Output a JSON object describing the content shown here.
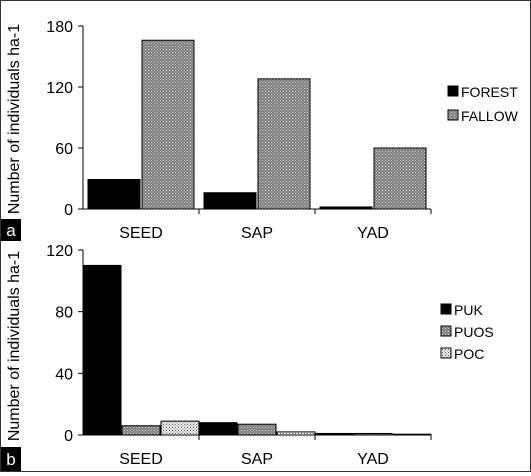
{
  "colors": {
    "black": "#000000",
    "gray": "#8c8c8c",
    "light": "#e8e8e8"
  },
  "chart_data": [
    {
      "type": "bar",
      "panel_label": "a",
      "categories": [
        "SEED",
        "SAP",
        "YAD"
      ],
      "ylabel": "Number of individuals ha-1",
      "xlabel": "",
      "ylim": [
        0,
        180
      ],
      "yticks": [
        "0",
        "60",
        "120",
        "180"
      ],
      "grid": false,
      "legend_position": "right",
      "series": [
        {
          "name": "FOREST",
          "values": [
            29,
            16,
            2
          ],
          "pattern": "solid-black"
        },
        {
          "name": "FALLOW",
          "values": [
            166,
            128,
            60
          ],
          "pattern": "dotted-gray"
        }
      ]
    },
    {
      "type": "bar",
      "panel_label": "b",
      "categories": [
        "SEED",
        "SAP",
        "YAD"
      ],
      "ylabel": "Number of individuals ha-1",
      "xlabel": "",
      "ylim": [
        0,
        120
      ],
      "yticks": [
        "0",
        "40",
        "80",
        "120"
      ],
      "grid": false,
      "legend_position": "right",
      "series": [
        {
          "name": "PUK",
          "values": [
            110,
            8,
            1
          ],
          "pattern": "solid-black"
        },
        {
          "name": "PUOS",
          "values": [
            6,
            7,
            1
          ],
          "pattern": "dotted-gray"
        },
        {
          "name": "POC",
          "values": [
            9,
            2,
            0
          ],
          "pattern": "dotted-light"
        }
      ]
    }
  ]
}
